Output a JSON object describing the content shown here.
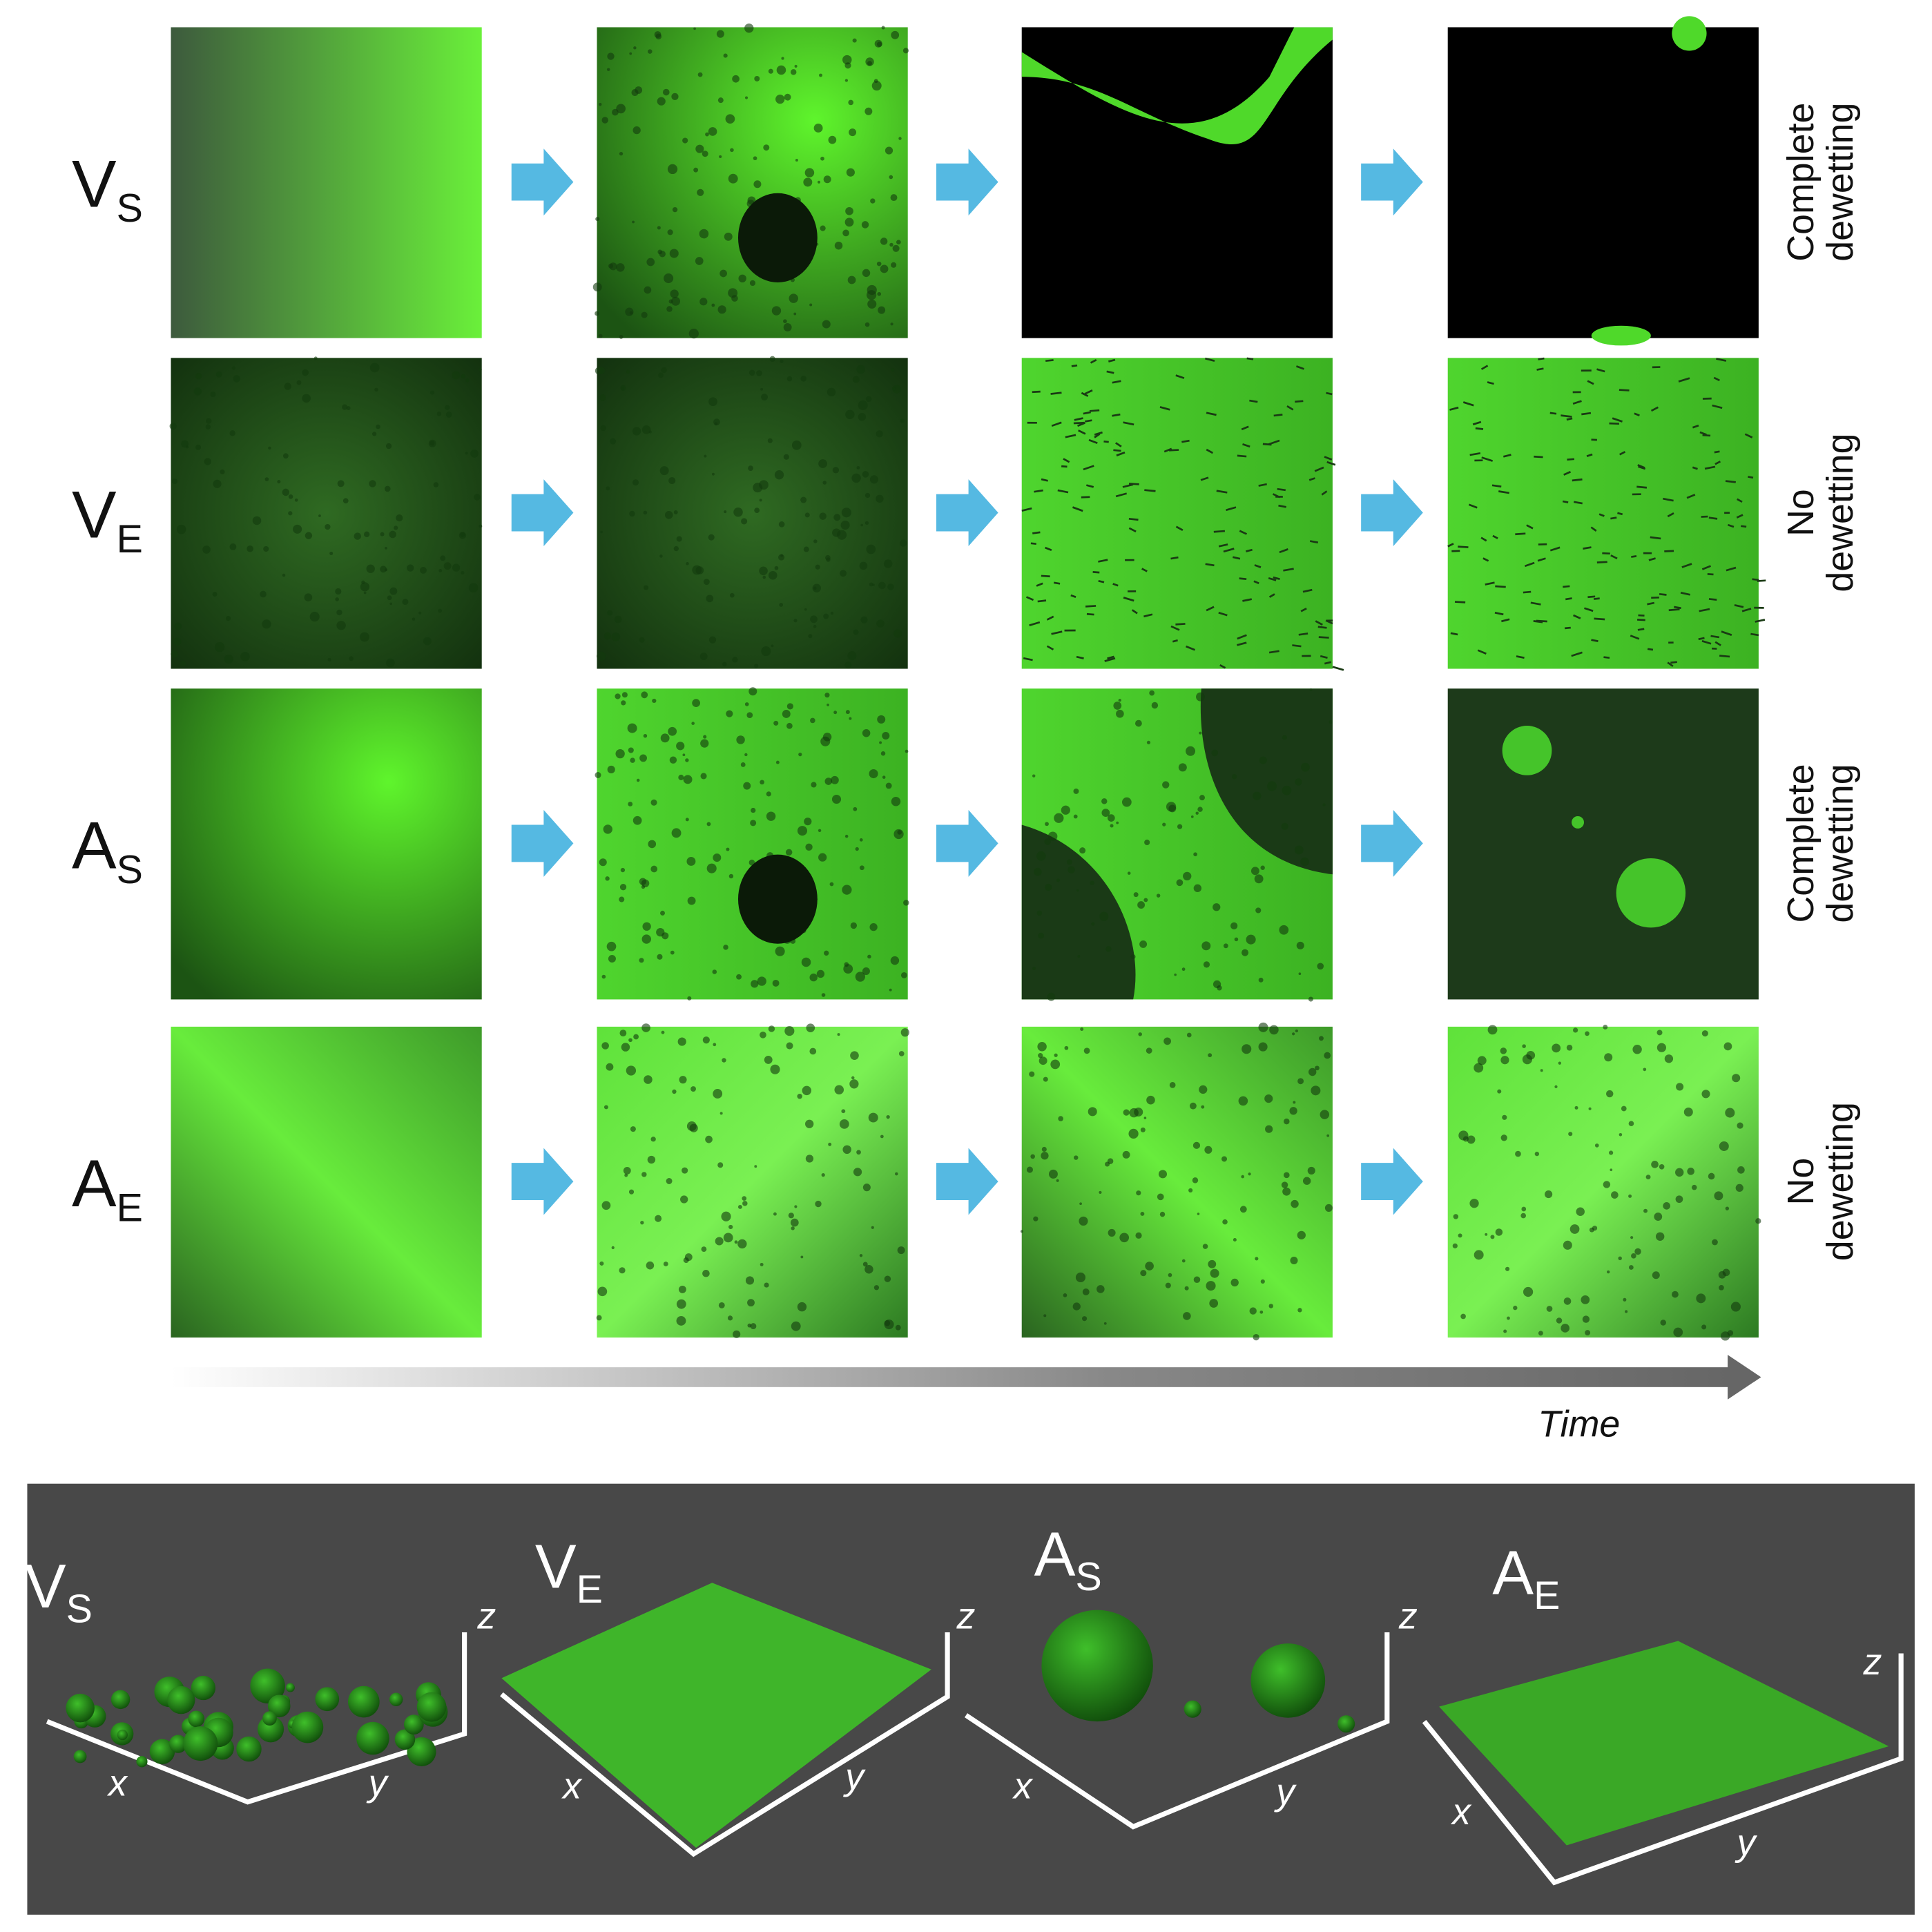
{
  "rows": [
    {
      "letter": "V",
      "sub": "S",
      "outcome": [
        "Complete",
        "dewetting"
      ]
    },
    {
      "letter": "V",
      "sub": "E",
      "outcome": [
        "No",
        "dewetting"
      ]
    },
    {
      "letter": "A",
      "sub": "S",
      "outcome": [
        "Complete",
        "dewetting"
      ]
    },
    {
      "letter": "A",
      "sub": "E",
      "outcome": [
        "No",
        "dewetting"
      ]
    }
  ],
  "time_label": "Time",
  "panels": [
    {
      "letter": "V",
      "sub": "S",
      "axes": [
        "x",
        "y",
        "z"
      ]
    },
    {
      "letter": "V",
      "sub": "E",
      "axes": [
        "x",
        "y",
        "z"
      ]
    },
    {
      "letter": "A",
      "sub": "S",
      "axes": [
        "x",
        "y",
        "z"
      ]
    },
    {
      "letter": "A",
      "sub": "E",
      "axes": [
        "x",
        "y",
        "z"
      ]
    }
  ]
}
